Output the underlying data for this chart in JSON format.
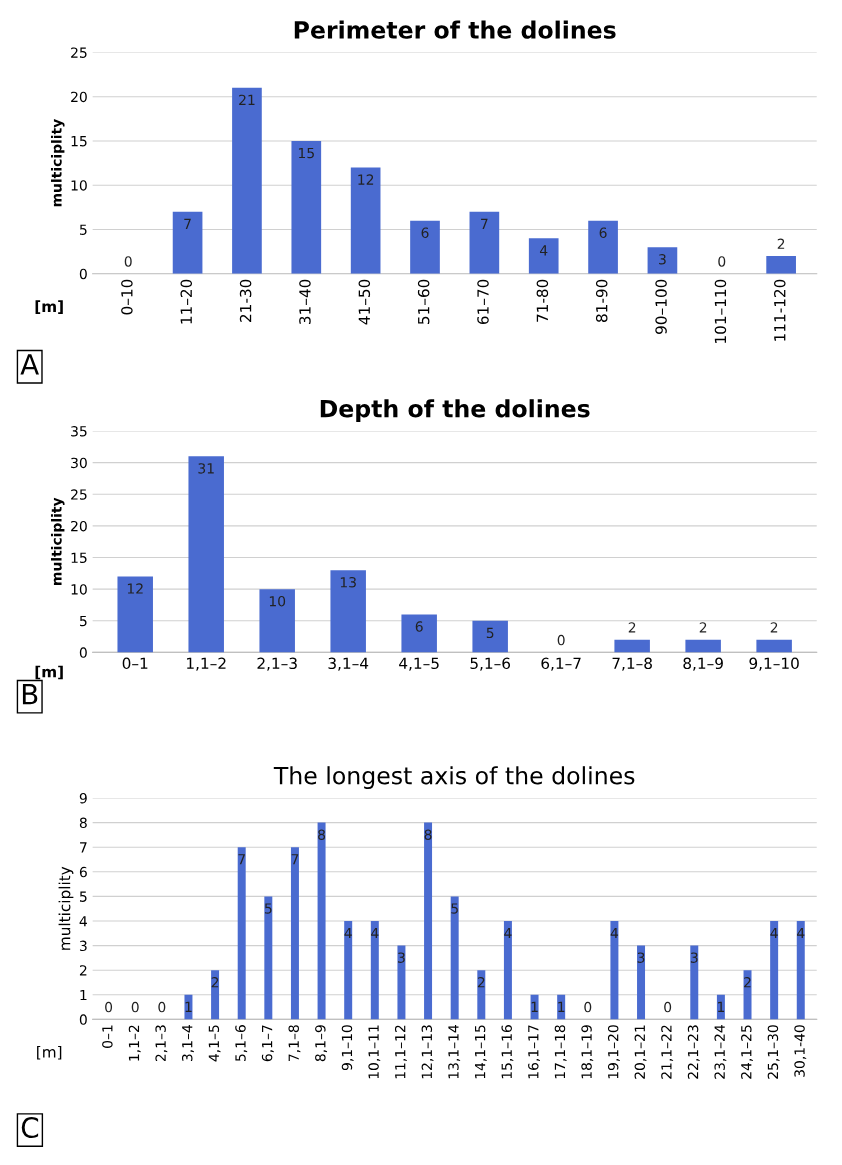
{
  "chart_data": [
    {
      "type": "bar",
      "title": "Perimeter of the dolines",
      "ylabel": "multiciplity",
      "xlabel": "[m]",
      "annotations": [
        "A"
      ],
      "categories": [
        "0–10",
        "11–20",
        "21-30",
        "31–40",
        "41–50",
        "51–60",
        "61–70",
        "71-80",
        "81-90",
        "90–100",
        "101–110",
        "111-120"
      ],
      "values": [
        0,
        7,
        21,
        15,
        12,
        6,
        7,
        4,
        6,
        3,
        0,
        2
      ],
      "color": "#4a6bd0",
      "ylim": [
        0,
        25
      ],
      "yticks": [
        0,
        5,
        10,
        15,
        20,
        25
      ],
      "grid": "y",
      "data_labels": true
    },
    {
      "type": "bar",
      "title": "Depth of the dolines",
      "ylabel": "multiciplity",
      "xlabel": "[m]",
      "annotations": [
        "B"
      ],
      "categories": [
        "0–1",
        "1,1–2",
        "2,1–3",
        "3,1–4",
        "4,1–5",
        "5,1–6",
        "6,1–7",
        "7,1–8",
        "8,1–9",
        "9,1–10"
      ],
      "values": [
        12,
        31,
        10,
        13,
        6,
        5,
        0,
        2,
        2,
        2
      ],
      "color": "#4a6bd0",
      "ylim": [
        0,
        35
      ],
      "yticks": [
        0,
        5,
        10,
        15,
        20,
        25,
        30,
        35
      ],
      "grid": "y",
      "data_labels": true
    },
    {
      "type": "bar",
      "title": "The longest axis of the dolines",
      "ylabel": "multiciplity",
      "xlabel": "[m]",
      "annotations": [
        "C"
      ],
      "categories": [
        "0–1",
        "1,1–2",
        "2,1–3",
        "3,1–4",
        "4,1–5",
        "5,1–6",
        "6,1–7",
        "7,1–8",
        "8,1–9",
        "9,1–10",
        "10,1–11",
        "11,1–12",
        "12,1–13",
        "13,1–14",
        "14,1–15",
        "15,1–16",
        "16,1–17",
        "17,1–18",
        "18,1–19",
        "19,1–20",
        "20,1–21",
        "21,1–22",
        "22,1–23",
        "23,1–24",
        "24,1–25",
        "25,1–30",
        "30,1-40"
      ],
      "values": [
        0,
        0,
        0,
        1,
        2,
        7,
        5,
        7,
        8,
        4,
        4,
        3,
        8,
        5,
        2,
        4,
        1,
        1,
        0,
        4,
        3,
        0,
        3,
        1,
        2,
        4,
        4
      ],
      "color": "#4a6bd0",
      "ylim": [
        0,
        9
      ],
      "yticks": [
        0,
        1,
        2,
        3,
        4,
        5,
        6,
        7,
        8,
        9
      ],
      "grid": "y",
      "data_labels": true
    }
  ]
}
